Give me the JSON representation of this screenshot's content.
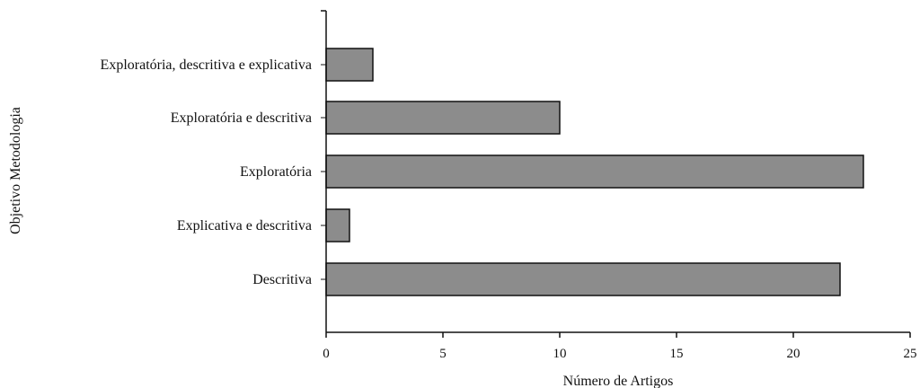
{
  "chart_data": {
    "type": "bar",
    "orientation": "horizontal",
    "title": "",
    "xlabel": "Número de Artigos",
    "ylabel": "Objetivo Metodologia",
    "categories": [
      "Exploratória, descritiva e explicativa",
      "Exploratória e descritiva",
      "Exploratória",
      "Explicativa e descritiva",
      "Descritiva"
    ],
    "values": [
      2,
      10,
      23,
      1,
      22
    ],
    "xlim": [
      0,
      25
    ],
    "xticks": [
      "0",
      "5",
      "10",
      "15",
      "20",
      "25"
    ],
    "grid": false,
    "legend": "none",
    "colors": {
      "bar": "#8c8c8c",
      "bar_stroke": "#111111",
      "axis": "#111111"
    }
  }
}
